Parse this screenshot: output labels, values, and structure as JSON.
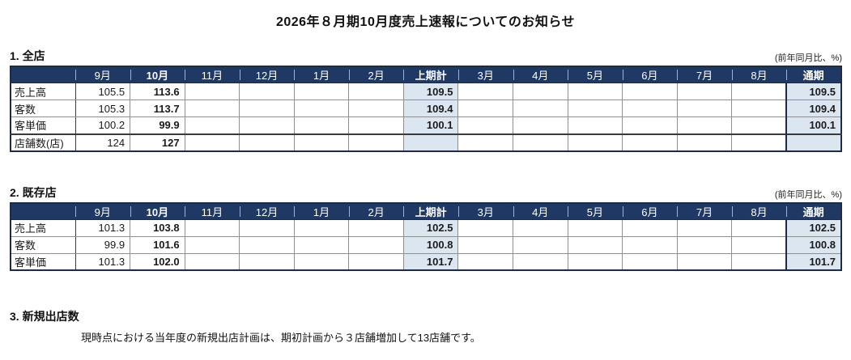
{
  "page": {
    "title": "2026年８月期10月度売上速報についてのお知らせ"
  },
  "unit_note": "(前年同月比、%)",
  "colors": {
    "header_bg": "#1f3864",
    "header_fg": "#ffffff",
    "highlight_bg": "#dce6f1",
    "grid_line": "#8f8f8f",
    "thick_border": "#1f2a44"
  },
  "sections": [
    {
      "heading": "1. 全店",
      "table": {
        "columns": [
          "",
          "9月",
          "10月",
          "11月",
          "12月",
          "1月",
          "2月",
          "上期計",
          "3月",
          "4月",
          "5月",
          "6月",
          "7月",
          "8月",
          "通期"
        ],
        "bold_columns": [
          2,
          7,
          14
        ],
        "highlight_columns": [
          7,
          14
        ],
        "thick_left_columns": [
          14
        ],
        "rows": [
          {
            "label": "売上高",
            "values": [
              "105.5",
              "113.6",
              "",
              "",
              "",
              "",
              "109.5",
              "",
              "",
              "",
              "",
              "",
              "",
              "109.5"
            ]
          },
          {
            "label": "客数",
            "values": [
              "105.3",
              "113.7",
              "",
              "",
              "",
              "",
              "109.4",
              "",
              "",
              "",
              "",
              "",
              "",
              "109.4"
            ]
          },
          {
            "label": "客単価",
            "values": [
              "100.2",
              "99.9",
              "",
              "",
              "",
              "",
              "100.1",
              "",
              "",
              "",
              "",
              "",
              "",
              "100.1"
            ]
          },
          {
            "label": "店舗数(店)",
            "values": [
              "124",
              "127",
              "",
              "",
              "",
              "",
              "",
              "",
              "",
              "",
              "",
              "",
              "",
              ""
            ],
            "thick_top": true
          }
        ]
      }
    },
    {
      "heading": "2. 既存店",
      "table": {
        "columns": [
          "",
          "9月",
          "10月",
          "11月",
          "12月",
          "1月",
          "2月",
          "上期計",
          "3月",
          "4月",
          "5月",
          "6月",
          "7月",
          "8月",
          "通期"
        ],
        "bold_columns": [
          2,
          7,
          14
        ],
        "highlight_columns": [
          7,
          14
        ],
        "thick_left_columns": [
          14
        ],
        "rows": [
          {
            "label": "売上高",
            "values": [
              "101.3",
              "103.8",
              "",
              "",
              "",
              "",
              "102.5",
              "",
              "",
              "",
              "",
              "",
              "",
              "102.5"
            ]
          },
          {
            "label": "客数",
            "values": [
              "99.9",
              "101.6",
              "",
              "",
              "",
              "",
              "100.8",
              "",
              "",
              "",
              "",
              "",
              "",
              "100.8"
            ]
          },
          {
            "label": "客単価",
            "values": [
              "101.3",
              "102.0",
              "",
              "",
              "",
              "",
              "101.7",
              "",
              "",
              "",
              "",
              "",
              "",
              "101.7"
            ]
          }
        ]
      }
    }
  ],
  "section3": {
    "heading": "3. 新規出店数",
    "body": "現時点における当年度の新規出店計画は、期初計画から３店舗増加して13店舗です。"
  }
}
